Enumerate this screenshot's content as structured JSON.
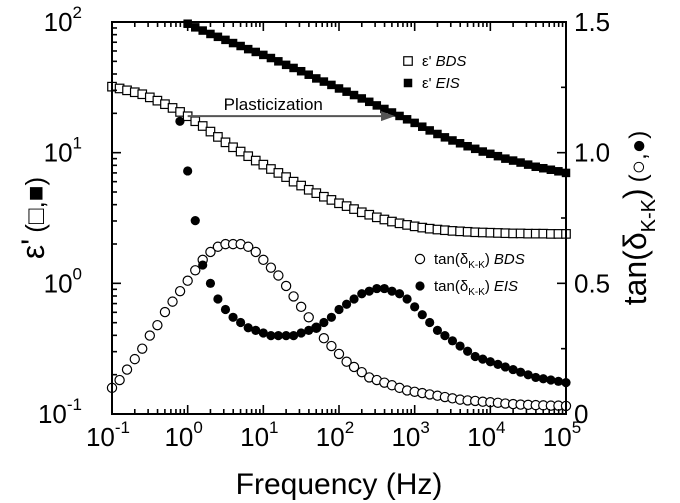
{
  "chart_data": {
    "type": "scatter",
    "xlabel": "Frequency (Hz)",
    "x_scale": "log",
    "xlim": [
      0.1,
      100000
    ],
    "x_ticks": [
      {
        "value": 0.1,
        "base": "10",
        "exp": "-1"
      },
      {
        "value": 1,
        "base": "10",
        "exp": "0"
      },
      {
        "value": 10,
        "base": "10",
        "exp": "1"
      },
      {
        "value": 100,
        "base": "10",
        "exp": "2"
      },
      {
        "value": 1000,
        "base": "10",
        "exp": "3"
      },
      {
        "value": 10000,
        "base": "10",
        "exp": "4"
      },
      {
        "value": 100000,
        "base": "10",
        "exp": "5"
      }
    ],
    "y_left": {
      "label_main": "ε'",
      "label_paren": "(□,■)",
      "scale": "log",
      "lim": [
        0.1,
        100
      ],
      "ticks": [
        {
          "value": 0.1,
          "base": "10",
          "exp": "-1"
        },
        {
          "value": 1,
          "base": "10",
          "exp": "0"
        },
        {
          "value": 10,
          "base": "10",
          "exp": "1"
        },
        {
          "value": 100,
          "base": "10",
          "exp": "2"
        }
      ]
    },
    "y_right": {
      "label_main": "tan(δ",
      "label_sub": "K-K",
      "label_end": ")",
      "label_paren": "(○,●)",
      "scale": "linear",
      "lim": [
        0,
        1.5
      ],
      "ticks": [
        {
          "value": 0,
          "label": "0"
        },
        {
          "value": 0.5,
          "label": "0.5"
        },
        {
          "value": 1.0,
          "label": "1.0"
        },
        {
          "value": 1.5,
          "label": "1.5"
        }
      ]
    },
    "legend_top": [
      {
        "marker": "open-square",
        "label": "ε'",
        "italic": "BDS"
      },
      {
        "marker": "filled-square",
        "label": "ε'",
        "italic": "EIS"
      }
    ],
    "legend_bottom": [
      {
        "marker": "open-circle",
        "label_pre": "tan(δ",
        "label_sub": "K-K",
        "label_post": ")",
        "italic": "BDS"
      },
      {
        "marker": "filled-circle",
        "label_pre": "tan(δ",
        "label_sub": "K-K",
        "label_post": ")",
        "italic": "EIS"
      }
    ],
    "annotation": {
      "text": "Plasticization",
      "arrow_from": [
        1.0,
        1.14
      ],
      "arrow_to": [
        550,
        1.14
      ]
    },
    "series": [
      {
        "key": "eps_bds",
        "axis": "left",
        "marker": "open-square",
        "x": [
          0.1,
          0.126,
          0.158,
          0.2,
          0.251,
          0.316,
          0.398,
          0.501,
          0.631,
          0.794,
          1.0,
          1.26,
          1.58,
          2.0,
          2.51,
          3.16,
          3.98,
          5.01,
          6.31,
          7.94,
          10,
          12.6,
          15.8,
          20,
          25.1,
          31.6,
          39.8,
          50.1,
          63.1,
          79.4,
          100,
          126,
          158,
          200,
          251,
          316,
          398,
          501,
          631,
          794,
          1000,
          1260,
          1580,
          2000,
          2510,
          3160,
          3980,
          5010,
          6310,
          7940,
          10000,
          12600,
          15800,
          20000,
          25100,
          31600,
          39800,
          50100,
          63100,
          79400,
          100000
        ],
        "y": [
          32,
          31,
          30,
          29,
          28,
          26.5,
          25,
          23.5,
          22,
          20.5,
          19,
          17.4,
          16,
          14.5,
          13.2,
          12,
          11,
          10.2,
          9.4,
          8.7,
          8.1,
          7.5,
          7.0,
          6.5,
          6.0,
          5.6,
          5.2,
          4.9,
          4.6,
          4.35,
          4.1,
          3.9,
          3.7,
          3.5,
          3.35,
          3.2,
          3.08,
          2.97,
          2.88,
          2.8,
          2.73,
          2.67,
          2.62,
          2.58,
          2.55,
          2.52,
          2.5,
          2.48,
          2.46,
          2.45,
          2.44,
          2.43,
          2.42,
          2.41,
          2.41,
          2.4,
          2.4,
          2.4,
          2.39,
          2.39,
          2.39
        ]
      },
      {
        "key": "eps_eis",
        "axis": "left",
        "marker": "filled-square",
        "x": [
          1.0,
          1.26,
          1.58,
          2.0,
          2.51,
          3.16,
          3.98,
          5.01,
          6.31,
          7.94,
          10,
          12.6,
          15.8,
          20,
          25.1,
          31.6,
          39.8,
          50.1,
          63.1,
          79.4,
          100,
          126,
          158,
          200,
          251,
          316,
          398,
          501,
          631,
          794,
          1000,
          1260,
          1580,
          2000,
          2510,
          3160,
          3980,
          5010,
          6310,
          7940,
          10000,
          12600,
          15800,
          20000,
          25100,
          31600,
          39800,
          50100,
          63100,
          79400,
          100000
        ],
        "y": [
          97,
          91,
          86,
          81,
          77,
          73,
          69,
          65.5,
          62,
          59,
          56,
          53,
          50,
          47,
          44.5,
          42,
          39.5,
          37,
          35,
          33,
          31,
          29.3,
          27.6,
          26,
          24.5,
          23,
          21.6,
          20.3,
          19.1,
          18,
          16.9,
          15.8,
          14.8,
          13.9,
          13.1,
          12.4,
          11.8,
          11.2,
          10.7,
          10.2,
          9.8,
          9.4,
          9.0,
          8.7,
          8.4,
          8.1,
          7.8,
          7.6,
          7.4,
          7.2,
          7.0
        ]
      },
      {
        "key": "tan_bds",
        "axis": "right",
        "marker": "open-circle",
        "x": [
          0.1,
          0.126,
          0.158,
          0.2,
          0.251,
          0.316,
          0.398,
          0.501,
          0.631,
          0.794,
          1.0,
          1.26,
          1.58,
          2.0,
          2.51,
          3.16,
          3.98,
          5.01,
          6.31,
          7.94,
          10,
          12.6,
          15.8,
          20,
          25.1,
          31.6,
          39.8,
          50.1,
          63.1,
          79.4,
          100,
          126,
          158,
          200,
          251,
          316,
          398,
          501,
          631,
          794,
          1000,
          1260,
          1580,
          2000,
          2510,
          3160,
          3980,
          5010,
          6310,
          7940,
          10000,
          12600,
          15800,
          20000,
          25100,
          31600,
          39800,
          50100,
          63100,
          79400,
          100000
        ],
        "y": [
          0.1,
          0.13,
          0.17,
          0.21,
          0.25,
          0.3,
          0.34,
          0.39,
          0.43,
          0.47,
          0.51,
          0.55,
          0.59,
          0.62,
          0.64,
          0.65,
          0.65,
          0.65,
          0.64,
          0.62,
          0.59,
          0.56,
          0.53,
          0.49,
          0.45,
          0.41,
          0.37,
          0.33,
          0.29,
          0.26,
          0.23,
          0.2,
          0.18,
          0.16,
          0.14,
          0.13,
          0.12,
          0.11,
          0.1,
          0.09,
          0.085,
          0.08,
          0.075,
          0.07,
          0.065,
          0.06,
          0.055,
          0.052,
          0.05,
          0.047,
          0.045,
          0.043,
          0.04,
          0.038,
          0.036,
          0.035,
          0.034,
          0.033,
          0.032,
          0.032,
          0.031
        ]
      },
      {
        "key": "tan_eis",
        "axis": "right",
        "marker": "filled-circle",
        "x": [
          0.79,
          1.0,
          1.26,
          1.58,
          2.0,
          2.51,
          3.16,
          3.98,
          5.01,
          6.31,
          7.94,
          10,
          12.6,
          15.8,
          20,
          25.1,
          31.6,
          39.8,
          50.1,
          63.1,
          79.4,
          100,
          126,
          158,
          200,
          251,
          316,
          398,
          501,
          631,
          794,
          1000,
          1260,
          1580,
          2000,
          2510,
          3160,
          3980,
          5010,
          6310,
          7940,
          10000,
          12600,
          15800,
          20000,
          25100,
          31600,
          39800,
          50100,
          63100,
          79400,
          100000
        ],
        "y": [
          1.12,
          0.93,
          0.74,
          0.57,
          0.5,
          0.44,
          0.4,
          0.37,
          0.35,
          0.33,
          0.32,
          0.31,
          0.3,
          0.3,
          0.3,
          0.3,
          0.31,
          0.32,
          0.33,
          0.35,
          0.37,
          0.4,
          0.42,
          0.44,
          0.46,
          0.47,
          0.48,
          0.48,
          0.47,
          0.46,
          0.44,
          0.41,
          0.38,
          0.35,
          0.32,
          0.3,
          0.28,
          0.26,
          0.24,
          0.22,
          0.21,
          0.2,
          0.19,
          0.18,
          0.17,
          0.16,
          0.15,
          0.14,
          0.135,
          0.13,
          0.125,
          0.12
        ]
      }
    ]
  }
}
